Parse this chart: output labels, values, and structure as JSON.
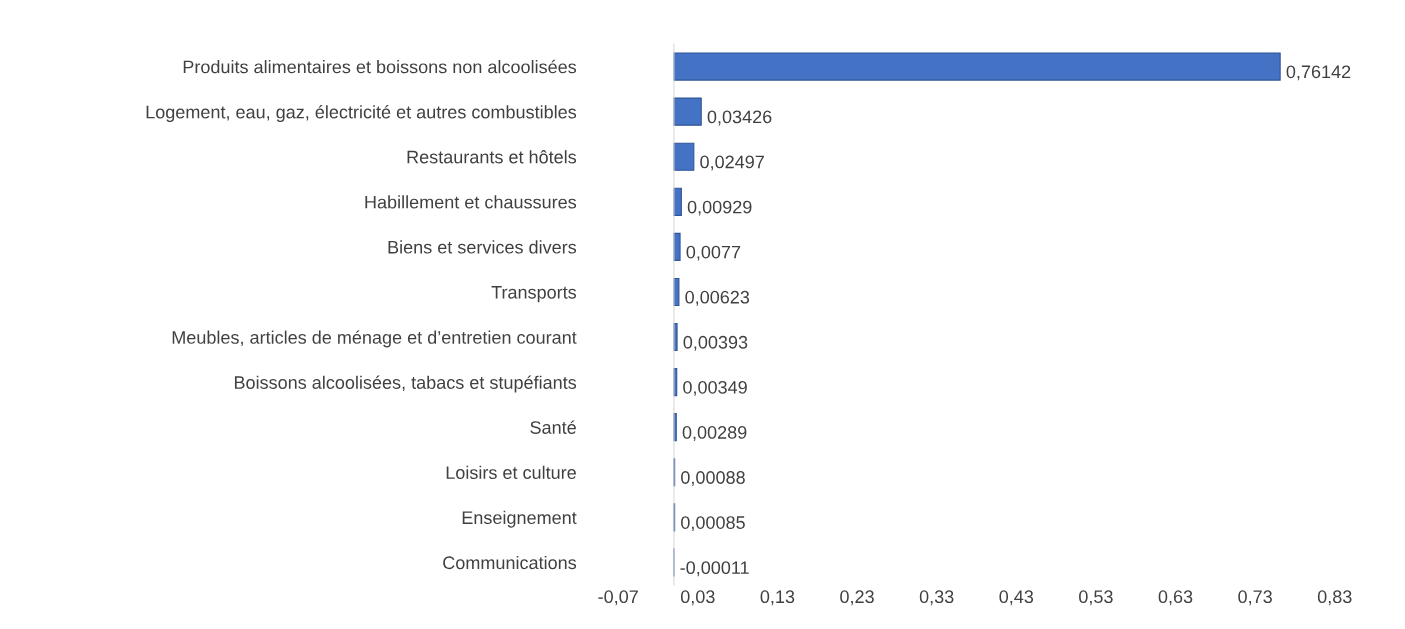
{
  "chart_data": {
    "type": "bar",
    "orientation": "horizontal",
    "categories": [
      "Produits alimentaires et boissons non alcoolisées",
      "Logement, eau, gaz, électricité et autres combustibles",
      "Restaurants et hôtels",
      "Habillement et chaussures",
      "Biens et services divers",
      "Transports",
      "Meubles, articles de ménage et d’entretien courant",
      "Boissons alcoolisées, tabacs et stupéfiants",
      "Santé",
      "Loisirs et culture",
      "Enseignement",
      "Communications"
    ],
    "values": [
      0.76142,
      0.03426,
      0.02497,
      0.00929,
      0.0077,
      0.00623,
      0.00393,
      0.00349,
      0.00289,
      0.00088,
      0.00085,
      -0.00011
    ],
    "value_labels": [
      "0,76142",
      "0,03426",
      "0,02497",
      "0,00929",
      "0,0077",
      "0,00623",
      "0,00393",
      "0,00349",
      "0,00289",
      "0,00088",
      "0,00085",
      "-0,00011"
    ],
    "color": "#4472c4",
    "xlim": [
      -0.07,
      0.83
    ],
    "xticks": [
      {
        "value": -0.07,
        "label": "-0,07"
      },
      {
        "value": 0.03,
        "label": "0,03"
      },
      {
        "value": 0.13,
        "label": "0,13"
      },
      {
        "value": 0.23,
        "label": "0,23"
      },
      {
        "value": 0.33,
        "label": "0,33"
      },
      {
        "value": 0.43,
        "label": "0,43"
      },
      {
        "value": 0.53,
        "label": "0,53"
      },
      {
        "value": 0.63,
        "label": "0,63"
      },
      {
        "value": 0.73,
        "label": "0,73"
      },
      {
        "value": 0.83,
        "label": "0,83"
      }
    ],
    "grid": false,
    "legend": false
  }
}
